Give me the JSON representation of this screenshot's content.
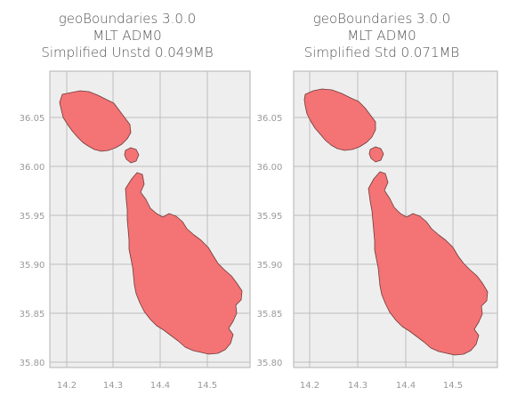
{
  "panels": [
    {
      "id": "unstd",
      "title_lines": [
        "geoBoundaries 3.0.0",
        "MLT ADM0",
        "Simplified Unstd 0.049MB"
      ]
    },
    {
      "id": "std",
      "title_lines": [
        "geoBoundaries 3.0.0",
        "MLT ADM0",
        "Simplified Std 0.071MB"
      ]
    }
  ],
  "axes": {
    "x_ticks": [
      "14.2",
      "14.3",
      "14.4",
      "14.5"
    ],
    "y_ticks": [
      "36.05",
      "36.00",
      "35.95",
      "35.90",
      "35.85",
      "35.80"
    ]
  },
  "colors": {
    "plot_bg": "#eeeeee",
    "grid": "#bdbdbd",
    "frame": "#bdbdbd",
    "land_fill": "#f47374",
    "land_stroke": "#6e3a3a"
  }
}
